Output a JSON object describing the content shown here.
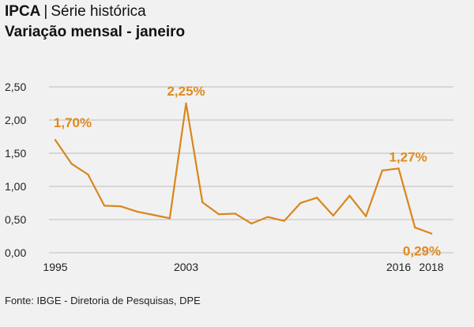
{
  "header": {
    "title": "IPCA",
    "separator": "|",
    "title_suffix": "Série histórica",
    "subtitle": "Variação mensal - janeiro"
  },
  "footer": {
    "source": "Fonte: IBGE - Diretoria de Pesquisas, DPE"
  },
  "colors": {
    "line": "#d9861c",
    "label": "#e08a1e",
    "grid": "#bdbdbd",
    "background": "#f1f1f1"
  },
  "chart_data": {
    "type": "line",
    "title": "IPCA | Série histórica",
    "subtitle": "Variação mensal - janeiro",
    "x": [
      1995,
      1996,
      1997,
      1998,
      1999,
      2000,
      2001,
      2002,
      2003,
      2004,
      2005,
      2006,
      2007,
      2008,
      2009,
      2010,
      2011,
      2012,
      2013,
      2014,
      2015,
      2016,
      2017,
      2018
    ],
    "series": [
      {
        "values": [
          1.7,
          1.34,
          1.18,
          0.71,
          0.7,
          0.62,
          0.57,
          0.52,
          2.25,
          0.76,
          0.58,
          0.59,
          0.44,
          0.54,
          0.48,
          0.75,
          0.83,
          0.56,
          0.86,
          0.55,
          1.24,
          1.27,
          0.38,
          0.29
        ]
      }
    ],
    "ylim": [
      0,
      2.5
    ],
    "yticks": [
      0,
      0.5,
      1.0,
      1.5,
      2.0,
      2.5
    ],
    "ytick_labels": [
      "0,00",
      "0,50",
      "1,00",
      "1,50",
      "2,00",
      "2,50"
    ],
    "xtick_labels": [
      {
        "x": 1995,
        "label": "1995"
      },
      {
        "x": 2003,
        "label": "2003"
      },
      {
        "x": 2016,
        "label": "2016"
      },
      {
        "x": 2018,
        "label": "2018"
      }
    ],
    "annotations": [
      {
        "x": 1995,
        "y": 1.7,
        "text": "1,70%"
      },
      {
        "x": 2003,
        "y": 2.25,
        "text": "2,25%"
      },
      {
        "x": 2016,
        "y": 1.27,
        "text": "1,27%"
      },
      {
        "x": 2018,
        "y": 0.29,
        "text": "0,29%"
      }
    ],
    "grid": "horizontal",
    "legend": "none"
  }
}
